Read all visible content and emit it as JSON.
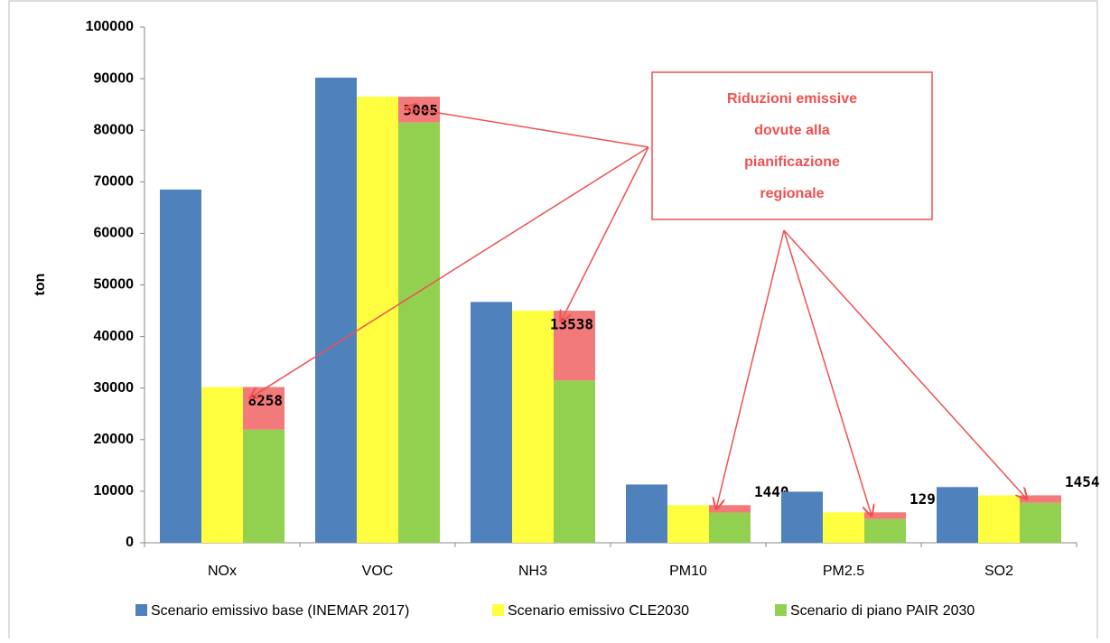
{
  "chart_data": {
    "type": "bar",
    "ylabel": "ton",
    "categories": [
      "NOx",
      "VOC",
      "NH3",
      "PM10",
      "PM2.5",
      "SO2"
    ],
    "series": [
      {
        "name": "Scenario emissivo base (INEMAR 2017)",
        "color": "#4f81bd",
        "values": [
          68500,
          90200,
          46700,
          11300,
          9900,
          10800
        ]
      },
      {
        "name": "Scenario emissivo CLE2030",
        "color": "#ffff40",
        "values": [
          30200,
          86500,
          45000,
          7300,
          5900,
          9200
        ]
      },
      {
        "name": "Scenario di piano PAIR 2030",
        "color": "#92d050",
        "values": [
          21942,
          81495,
          31462,
          5860,
          4602,
          7746
        ]
      }
    ],
    "reductions": {
      "color": "#f27a7a",
      "values": [
        8258,
        5005,
        13538,
        1440,
        1298,
        1454
      ]
    },
    "annotation": [
      "Riduzioni emissive",
      "dovute alla",
      "pianificazione",
      "regionale"
    ],
    "annotation_color": "#f05050",
    "ylim": [
      0,
      100000
    ],
    "yticks": [
      0,
      10000,
      20000,
      30000,
      40000,
      50000,
      60000,
      70000,
      80000,
      90000,
      100000
    ],
    "grid": false
  }
}
